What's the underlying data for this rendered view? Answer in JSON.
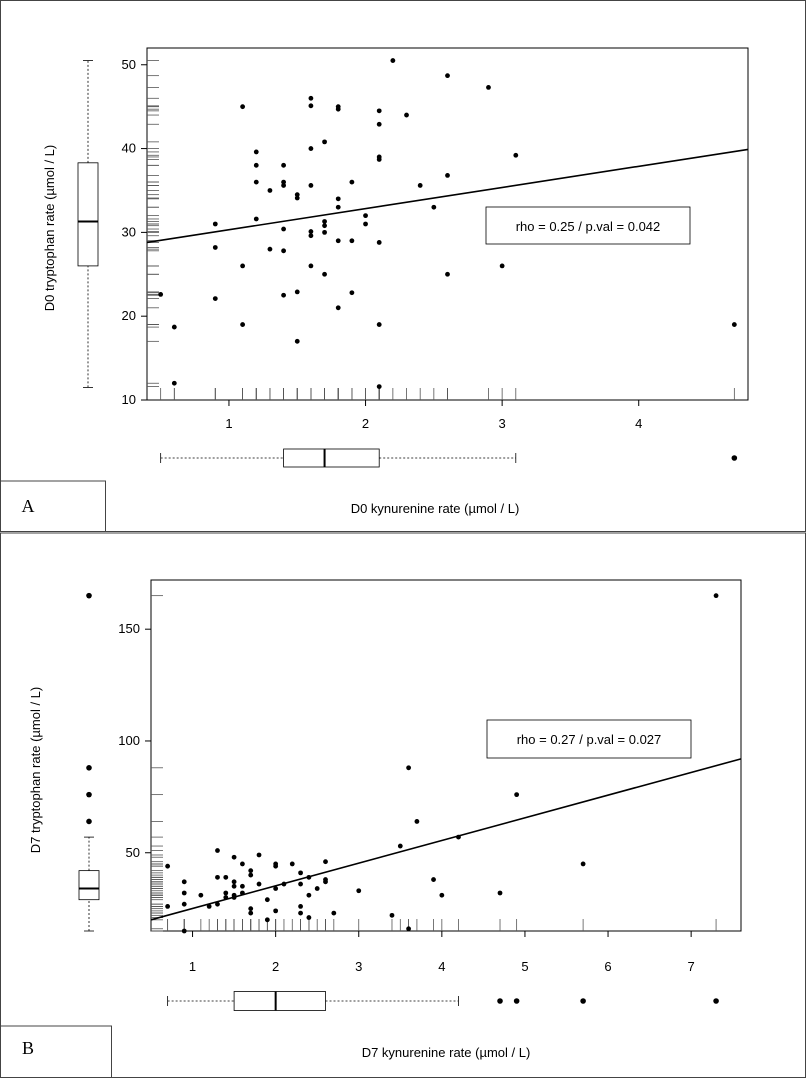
{
  "chart_data": [
    {
      "type": "scatter",
      "panel_label": "A",
      "xlabel": "D0 kynurenine rate (µmol / L)",
      "ylabel": "D0 tryptophan rate (µmol / L)",
      "xlim": [
        0.4,
        4.8
      ],
      "ylim": [
        10,
        52
      ],
      "xticks": [
        1,
        2,
        3,
        4
      ],
      "yticks": [
        10,
        20,
        30,
        40,
        50
      ],
      "stat_label": "rho = 0.25 / p.val = 0.042",
      "fit_line": {
        "x": [
          0.4,
          4.8
        ],
        "y": [
          28.8,
          39.9
        ]
      },
      "x_boxplot": {
        "min": 0.5,
        "q1": 1.4,
        "median": 1.7,
        "q3": 2.1,
        "max": 3.1,
        "outliers": [
          4.7
        ]
      },
      "y_boxplot": {
        "min": 11.5,
        "q1": 26,
        "median": 31.3,
        "q3": 38.3,
        "max": 50.5,
        "outliers": []
      },
      "points": [
        [
          0.5,
          22.6
        ],
        [
          0.6,
          18.7
        ],
        [
          0.6,
          12.0
        ],
        [
          0.9,
          31.0
        ],
        [
          0.9,
          28.2
        ],
        [
          0.9,
          22.1
        ],
        [
          1.1,
          45.0
        ],
        [
          1.1,
          26.0
        ],
        [
          1.1,
          19.0
        ],
        [
          1.2,
          39.6
        ],
        [
          1.2,
          38.0
        ],
        [
          1.2,
          36.0
        ],
        [
          1.2,
          31.6
        ],
        [
          1.3,
          35.0
        ],
        [
          1.3,
          28.0
        ],
        [
          1.4,
          38.0
        ],
        [
          1.4,
          36.0
        ],
        [
          1.4,
          35.6
        ],
        [
          1.4,
          30.4
        ],
        [
          1.4,
          27.8
        ],
        [
          1.4,
          22.5
        ],
        [
          1.5,
          34.1
        ],
        [
          1.5,
          34.5
        ],
        [
          1.5,
          22.9
        ],
        [
          1.5,
          17.0
        ],
        [
          1.6,
          46.0
        ],
        [
          1.6,
          45.1
        ],
        [
          1.6,
          40.0
        ],
        [
          1.6,
          35.6
        ],
        [
          1.6,
          30.1
        ],
        [
          1.6,
          29.6
        ],
        [
          1.6,
          26.0
        ],
        [
          1.7,
          40.8
        ],
        [
          1.7,
          31.3
        ],
        [
          1.7,
          30.8
        ],
        [
          1.7,
          30.0
        ],
        [
          1.7,
          25.0
        ],
        [
          1.8,
          45.0
        ],
        [
          1.8,
          44.7
        ],
        [
          1.8,
          34.0
        ],
        [
          1.8,
          33.0
        ],
        [
          1.8,
          29.0
        ],
        [
          1.8,
          21.0
        ],
        [
          1.9,
          36.0
        ],
        [
          1.9,
          29.0
        ],
        [
          1.9,
          22.8
        ],
        [
          2.0,
          32.0
        ],
        [
          2.0,
          31.0
        ],
        [
          2.1,
          44.5
        ],
        [
          2.1,
          42.9
        ],
        [
          2.1,
          39.0
        ],
        [
          2.1,
          38.7
        ],
        [
          2.1,
          28.8
        ],
        [
          2.1,
          19.0
        ],
        [
          2.1,
          11.6
        ],
        [
          2.2,
          50.5
        ],
        [
          2.3,
          44.0
        ],
        [
          2.4,
          35.6
        ],
        [
          2.5,
          33.0
        ],
        [
          2.6,
          48.7
        ],
        [
          2.6,
          36.8
        ],
        [
          2.6,
          25.0
        ],
        [
          2.9,
          47.3
        ],
        [
          3.0,
          26.0
        ],
        [
          3.1,
          39.2
        ],
        [
          4.7,
          19.0
        ]
      ]
    },
    {
      "type": "scatter",
      "panel_label": "B",
      "xlabel": "D7 kynurenine rate (µmol / L)",
      "ylabel": "D7 tryptophan rate (µmol / L)",
      "xlim": [
        0.5,
        7.6
      ],
      "ylim": [
        15,
        172
      ],
      "xticks": [
        1,
        2,
        3,
        4,
        5,
        6,
        7
      ],
      "yticks": [
        50,
        100,
        150
      ],
      "stat_label": "rho = 0.27 / p.val = 0.027",
      "fit_line": {
        "x": [
          0.5,
          7.6
        ],
        "y": [
          20,
          92
        ]
      },
      "x_boxplot": {
        "min": 0.7,
        "q1": 1.5,
        "median": 2.0,
        "q3": 2.6,
        "max": 4.2,
        "outliers": [
          4.7,
          4.9,
          5.7,
          7.3
        ]
      },
      "y_boxplot": {
        "min": 15,
        "q1": 29,
        "median": 34,
        "q3": 42,
        "max": 57,
        "outliers": [
          64,
          76,
          88,
          165
        ]
      },
      "points": [
        [
          0.7,
          44
        ],
        [
          0.7,
          26
        ],
        [
          0.9,
          37
        ],
        [
          0.9,
          32
        ],
        [
          0.9,
          27
        ],
        [
          0.9,
          15
        ],
        [
          1.1,
          31
        ],
        [
          1.2,
          26
        ],
        [
          1.3,
          51
        ],
        [
          1.3,
          39
        ],
        [
          1.3,
          27
        ],
        [
          1.4,
          39
        ],
        [
          1.4,
          32
        ],
        [
          1.4,
          30
        ],
        [
          1.5,
          48
        ],
        [
          1.5,
          37
        ],
        [
          1.5,
          35
        ],
        [
          1.5,
          31
        ],
        [
          1.5,
          30
        ],
        [
          1.6,
          45
        ],
        [
          1.6,
          35
        ],
        [
          1.6,
          32
        ],
        [
          1.7,
          42
        ],
        [
          1.7,
          40
        ],
        [
          1.7,
          25
        ],
        [
          1.7,
          23
        ],
        [
          1.8,
          49
        ],
        [
          1.8,
          36
        ],
        [
          1.9,
          29
        ],
        [
          1.9,
          20
        ],
        [
          2.0,
          45
        ],
        [
          2.0,
          44
        ],
        [
          2.0,
          34
        ],
        [
          2.0,
          24
        ],
        [
          2.1,
          36
        ],
        [
          2.2,
          45
        ],
        [
          2.3,
          41
        ],
        [
          2.3,
          36
        ],
        [
          2.3,
          26
        ],
        [
          2.3,
          23
        ],
        [
          2.4,
          39
        ],
        [
          2.4,
          31
        ],
        [
          2.4,
          21
        ],
        [
          2.5,
          34
        ],
        [
          2.6,
          46
        ],
        [
          2.6,
          38
        ],
        [
          2.6,
          37
        ],
        [
          2.7,
          23
        ],
        [
          3.0,
          33
        ],
        [
          3.4,
          22
        ],
        [
          3.5,
          53
        ],
        [
          3.6,
          88
        ],
        [
          3.6,
          16
        ],
        [
          3.7,
          64
        ],
        [
          3.9,
          38
        ],
        [
          4.0,
          31
        ],
        [
          4.2,
          57
        ],
        [
          4.7,
          32
        ],
        [
          4.9,
          76
        ],
        [
          5.7,
          45
        ],
        [
          7.3,
          165
        ]
      ]
    }
  ]
}
